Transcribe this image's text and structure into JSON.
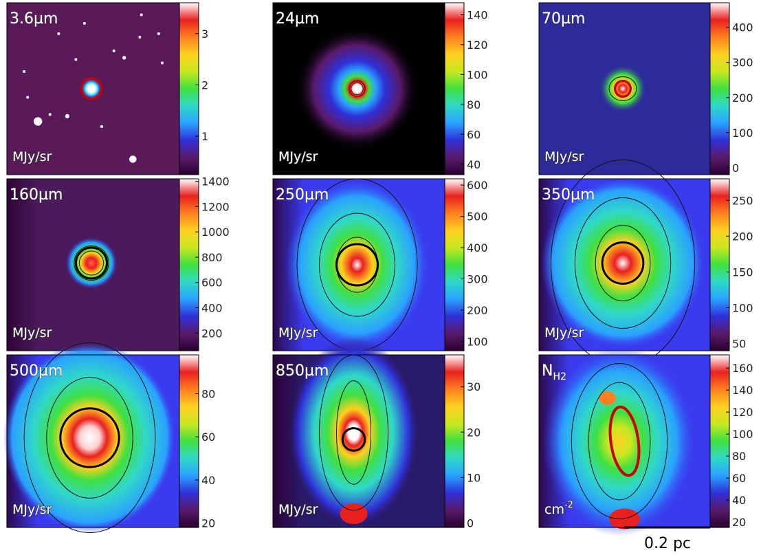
{
  "chart_data": [
    {
      "type": "heatmap",
      "panel": "3.6µm",
      "label": "3.6µm",
      "unit": "MJy/sr",
      "ticks": [
        1,
        2,
        3
      ],
      "range": [
        0.25,
        3.6
      ],
      "colors": {
        "bg": "#5a1a5a",
        "contour": "#111111",
        "aperture": "#cc0000"
      },
      "aperture_shape": "circle",
      "aperture_color": "red"
    },
    {
      "type": "heatmap",
      "panel": "24µm",
      "label": "24µm",
      "unit": "MJy/sr",
      "ticks": [
        40,
        60,
        80,
        100,
        120,
        140
      ],
      "range": [
        33,
        148
      ],
      "colors": {
        "bg": "#000000",
        "contour": "#ffffff",
        "aperture": "#cc0000"
      },
      "aperture_shape": "circle",
      "aperture_color": "red"
    },
    {
      "type": "heatmap",
      "panel": "70µm",
      "label": "70µm",
      "unit": "MJy/sr",
      "ticks": [
        0,
        100,
        200,
        300,
        400
      ],
      "range": [
        -20,
        470
      ],
      "colors": {
        "bg": "#2d2a9a",
        "contour": "#111111",
        "aperture": "#cc0000"
      },
      "aperture_shape": "circle",
      "aperture_color": "red"
    },
    {
      "type": "heatmap",
      "panel": "160µm",
      "label": "160µm",
      "unit": "MJy/sr",
      "ticks": [
        200,
        400,
        600,
        800,
        1000,
        1200,
        1400
      ],
      "range": [
        60,
        1420
      ],
      "colors": {
        "bg": "#4a1a5a",
        "contour": "#111111",
        "aperture": "#000000"
      },
      "aperture_shape": "circle",
      "aperture_color": "black"
    },
    {
      "type": "heatmap",
      "panel": "250µm",
      "label": "250µm",
      "unit": "MJy/sr",
      "ticks": [
        100,
        200,
        300,
        400,
        500,
        600
      ],
      "range": [
        70,
        620
      ],
      "colors": {
        "bg": "#3a3aee",
        "contour": "#111111",
        "aperture": "#000000"
      },
      "aperture_shape": "circle",
      "aperture_color": "black"
    },
    {
      "type": "heatmap",
      "panel": "350µm",
      "label": "350µm",
      "unit": "MJy/sr",
      "ticks": [
        50,
        100,
        150,
        200,
        250
      ],
      "range": [
        40,
        280
      ],
      "colors": {
        "bg": "#3a3aee",
        "contour": "#111111",
        "aperture": "#000000"
      },
      "aperture_shape": "circle",
      "aperture_color": "black"
    },
    {
      "type": "heatmap",
      "panel": "500µm",
      "label": "500µm",
      "unit": "MJy/sr",
      "ticks": [
        20,
        40,
        60,
        80
      ],
      "range": [
        18,
        98
      ],
      "colors": {
        "bg": "#3a3aee",
        "contour": "#111111",
        "aperture": "#000000"
      },
      "aperture_shape": "circle",
      "aperture_color": "black"
    },
    {
      "type": "heatmap",
      "panel": "850µm",
      "label": "850µm",
      "unit": "MJy/sr",
      "ticks": [
        0,
        10,
        20,
        30
      ],
      "range": [
        -1,
        37
      ],
      "colors": {
        "bg": "#2a1a6a",
        "contour": "#111111",
        "aperture": "#000000"
      },
      "aperture_shape": "circle",
      "aperture_color": "black"
    },
    {
      "type": "heatmap",
      "panel": "NH2",
      "label": "N",
      "label_sub": "H2",
      "unit": "cm",
      "unit_sup": "-2",
      "ticks": [
        20,
        40,
        60,
        80,
        100,
        120,
        140,
        160
      ],
      "range": [
        15,
        172
      ],
      "colors": {
        "bg": "#3a3aee",
        "contour": "#111111",
        "aperture": "#cc0000"
      },
      "aperture_shape": "ellipse",
      "aperture_color": "red"
    }
  ],
  "scalebar": {
    "label": "0.2 pc"
  },
  "colormap": [
    "#2a0030",
    "#5a1a6a",
    "#3030d8",
    "#2aa0ff",
    "#30d8c8",
    "#40e040",
    "#c8e820",
    "#ffd020",
    "#ff8020",
    "#e82020",
    "#ffffff"
  ]
}
